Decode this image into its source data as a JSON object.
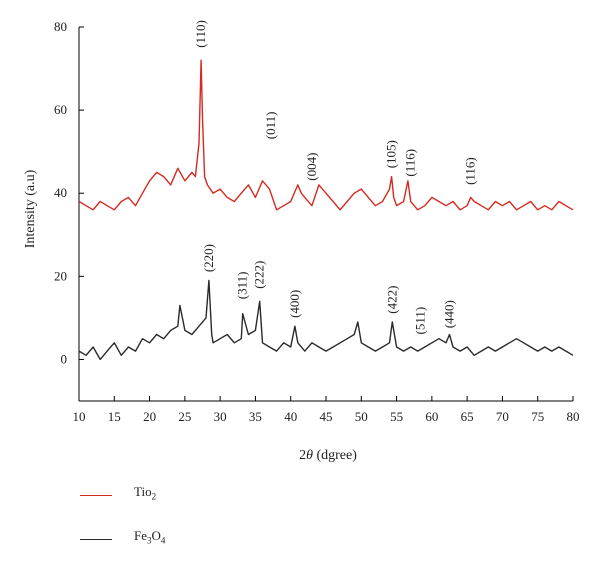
{
  "chart_data": {
    "type": "line",
    "title": "",
    "xlabel_prefix": "2",
    "xlabel_symbol": "θ",
    "xlabel_suffix": " (dgree)",
    "ylabel": "Intensity (a.u)",
    "xlim": [
      10,
      80
    ],
    "ylim": [
      -10,
      80
    ],
    "xticks": [
      10,
      15,
      20,
      25,
      30,
      35,
      40,
      45,
      50,
      55,
      60,
      65,
      70,
      75,
      80
    ],
    "yticks": [
      0,
      20,
      40,
      60,
      80
    ],
    "grid": false,
    "legend_position": "bottom-left",
    "series": [
      {
        "name": "TiO2",
        "legend_main": "Tio",
        "legend_sub": "2",
        "color": "#d42a20",
        "x": [
          10,
          11,
          12,
          13,
          14,
          15,
          16,
          17,
          18,
          19,
          20,
          21,
          22,
          23,
          24,
          25,
          26,
          26.5,
          27.0,
          27.3,
          27.5,
          27.8,
          28.2,
          29,
          30,
          31,
          32,
          33,
          34,
          35,
          36,
          37,
          38,
          39,
          40,
          41,
          41.5,
          42,
          43,
          44,
          45,
          46,
          47,
          48,
          49,
          50,
          51,
          52,
          53,
          54,
          54.3,
          54.6,
          55,
          56,
          56.6,
          57,
          58,
          59,
          60,
          61,
          62,
          63,
          64,
          65,
          65.5,
          66,
          67,
          68,
          69,
          70,
          71,
          72,
          73,
          74,
          75,
          76,
          77,
          78,
          79,
          80
        ],
        "y": [
          38,
          37,
          36,
          38,
          37,
          36,
          38,
          39,
          37,
          40,
          43,
          45,
          44,
          42,
          46,
          43,
          45,
          44,
          52,
          72,
          58,
          44,
          42,
          40,
          41,
          39,
          38,
          40,
          42,
          39,
          43,
          41,
          36,
          37,
          38,
          42,
          40,
          39,
          37,
          42,
          40,
          38,
          36,
          38,
          40,
          41,
          39,
          37,
          38,
          41,
          44,
          39,
          37,
          38,
          43,
          38,
          36,
          37,
          39,
          38,
          37,
          38,
          36,
          37,
          39,
          38,
          37,
          36,
          38,
          37,
          38,
          36,
          37,
          38,
          36,
          37,
          36,
          38,
          37,
          36
        ]
      },
      {
        "name": "Fe3O4",
        "legend_main": "Fe",
        "legend_sub": "3",
        "legend_main2": "O",
        "legend_sub2": "4",
        "color": "#2a2a2a",
        "x": [
          10,
          11,
          12,
          13,
          14,
          15,
          16,
          17,
          18,
          19,
          20,
          21,
          22,
          23,
          24,
          24.3,
          25,
          26,
          27,
          28,
          28.4,
          28.8,
          29,
          30,
          31,
          32,
          33,
          33.2,
          34,
          35,
          35.6,
          36,
          37,
          38,
          39,
          40,
          40.6,
          41,
          42,
          43,
          44,
          45,
          46,
          47,
          48,
          49,
          49.5,
          50,
          51,
          52,
          53,
          54,
          54.4,
          55,
          56,
          57,
          58,
          59,
          60,
          61,
          62,
          62.5,
          63,
          64,
          65,
          66,
          67,
          68,
          69,
          70,
          71,
          72,
          73,
          74,
          75,
          76,
          77,
          78,
          79,
          80
        ],
        "y": [
          2,
          1,
          3,
          0,
          2,
          4,
          1,
          3,
          2,
          5,
          4,
          6,
          5,
          7,
          8,
          13,
          7,
          6,
          8,
          10,
          19,
          6,
          4,
          5,
          6,
          4,
          5,
          11,
          6,
          7,
          14,
          4,
          3,
          2,
          4,
          3,
          8,
          4,
          2,
          4,
          3,
          2,
          3,
          4,
          5,
          6,
          9,
          4,
          3,
          2,
          3,
          4,
          9,
          3,
          2,
          3,
          2,
          3,
          4,
          5,
          4,
          6,
          3,
          2,
          3,
          1,
          2,
          3,
          2,
          3,
          4,
          5,
          4,
          3,
          2,
          3,
          2,
          3,
          2,
          1
        ]
      }
    ],
    "annotations": [
      {
        "text": "(110)",
        "x": 27.3,
        "y": 75
      },
      {
        "text": "(011)",
        "x": 37.2,
        "y": 53
      },
      {
        "text": "(004)",
        "x": 43.0,
        "y": 43
      },
      {
        "text": "(105)",
        "x": 54.3,
        "y": 46
      },
      {
        "text": "(116)",
        "x": 57.0,
        "y": 44
      },
      {
        "text": "(116)",
        "x": 65.5,
        "y": 42
      },
      {
        "text": "(220)",
        "x": 28.4,
        "y": 21
      },
      {
        "text": "(311)",
        "x": 33.2,
        "y": 14.5
      },
      {
        "text": "(222)",
        "x": 35.6,
        "y": 17
      },
      {
        "text": "(400)",
        "x": 40.6,
        "y": 10
      },
      {
        "text": "(422)",
        "x": 54.4,
        "y": 11
      },
      {
        "text": "(511)",
        "x": 58.4,
        "y": 6
      },
      {
        "text": "(440)",
        "x": 62.5,
        "y": 7.5
      }
    ]
  }
}
